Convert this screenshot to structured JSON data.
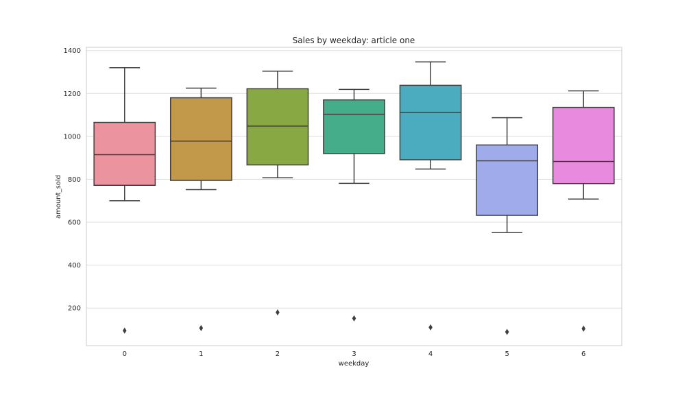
{
  "chart_data": {
    "type": "box",
    "title": "Sales by weekday: article one",
    "xlabel": "weekday",
    "ylabel": "amount_sold",
    "categories": [
      "0",
      "1",
      "2",
      "3",
      "4",
      "5",
      "6"
    ],
    "ylim": [
      25,
      1415
    ],
    "yticks": [
      200,
      400,
      600,
      800,
      1000,
      1200,
      1400
    ],
    "grid": true,
    "boxes": [
      {
        "whisker_low": 700,
        "q1": 772,
        "median": 915,
        "q3": 1065,
        "whisker_high": 1320,
        "outliers": [
          95
        ],
        "color": "#EB939E"
      },
      {
        "whisker_low": 752,
        "q1": 795,
        "median": 978,
        "q3": 1180,
        "whisker_high": 1225,
        "outliers": [
          107
        ],
        "color": "#C2994A"
      },
      {
        "whisker_low": 807,
        "q1": 867,
        "median": 1048,
        "q3": 1222,
        "whisker_high": 1304,
        "outliers": [
          180
        ],
        "color": "#87A843"
      },
      {
        "whisker_low": 781,
        "q1": 920,
        "median": 1103,
        "q3": 1170,
        "whisker_high": 1219,
        "outliers": [
          152
        ],
        "color": "#46AD8A"
      },
      {
        "whisker_low": 848,
        "q1": 891,
        "median": 1112,
        "q3": 1238,
        "whisker_high": 1347,
        "outliers": [
          110
        ],
        "color": "#4BACBF"
      },
      {
        "whisker_low": 552,
        "q1": 632,
        "median": 886,
        "q3": 960,
        "whisker_high": 1087,
        "outliers": [
          89
        ],
        "color": "#A0ABEB"
      },
      {
        "whisker_low": 708,
        "q1": 780,
        "median": 883,
        "q3": 1135,
        "whisker_high": 1212,
        "outliers": [
          104
        ],
        "color": "#E88ADD"
      }
    ]
  }
}
